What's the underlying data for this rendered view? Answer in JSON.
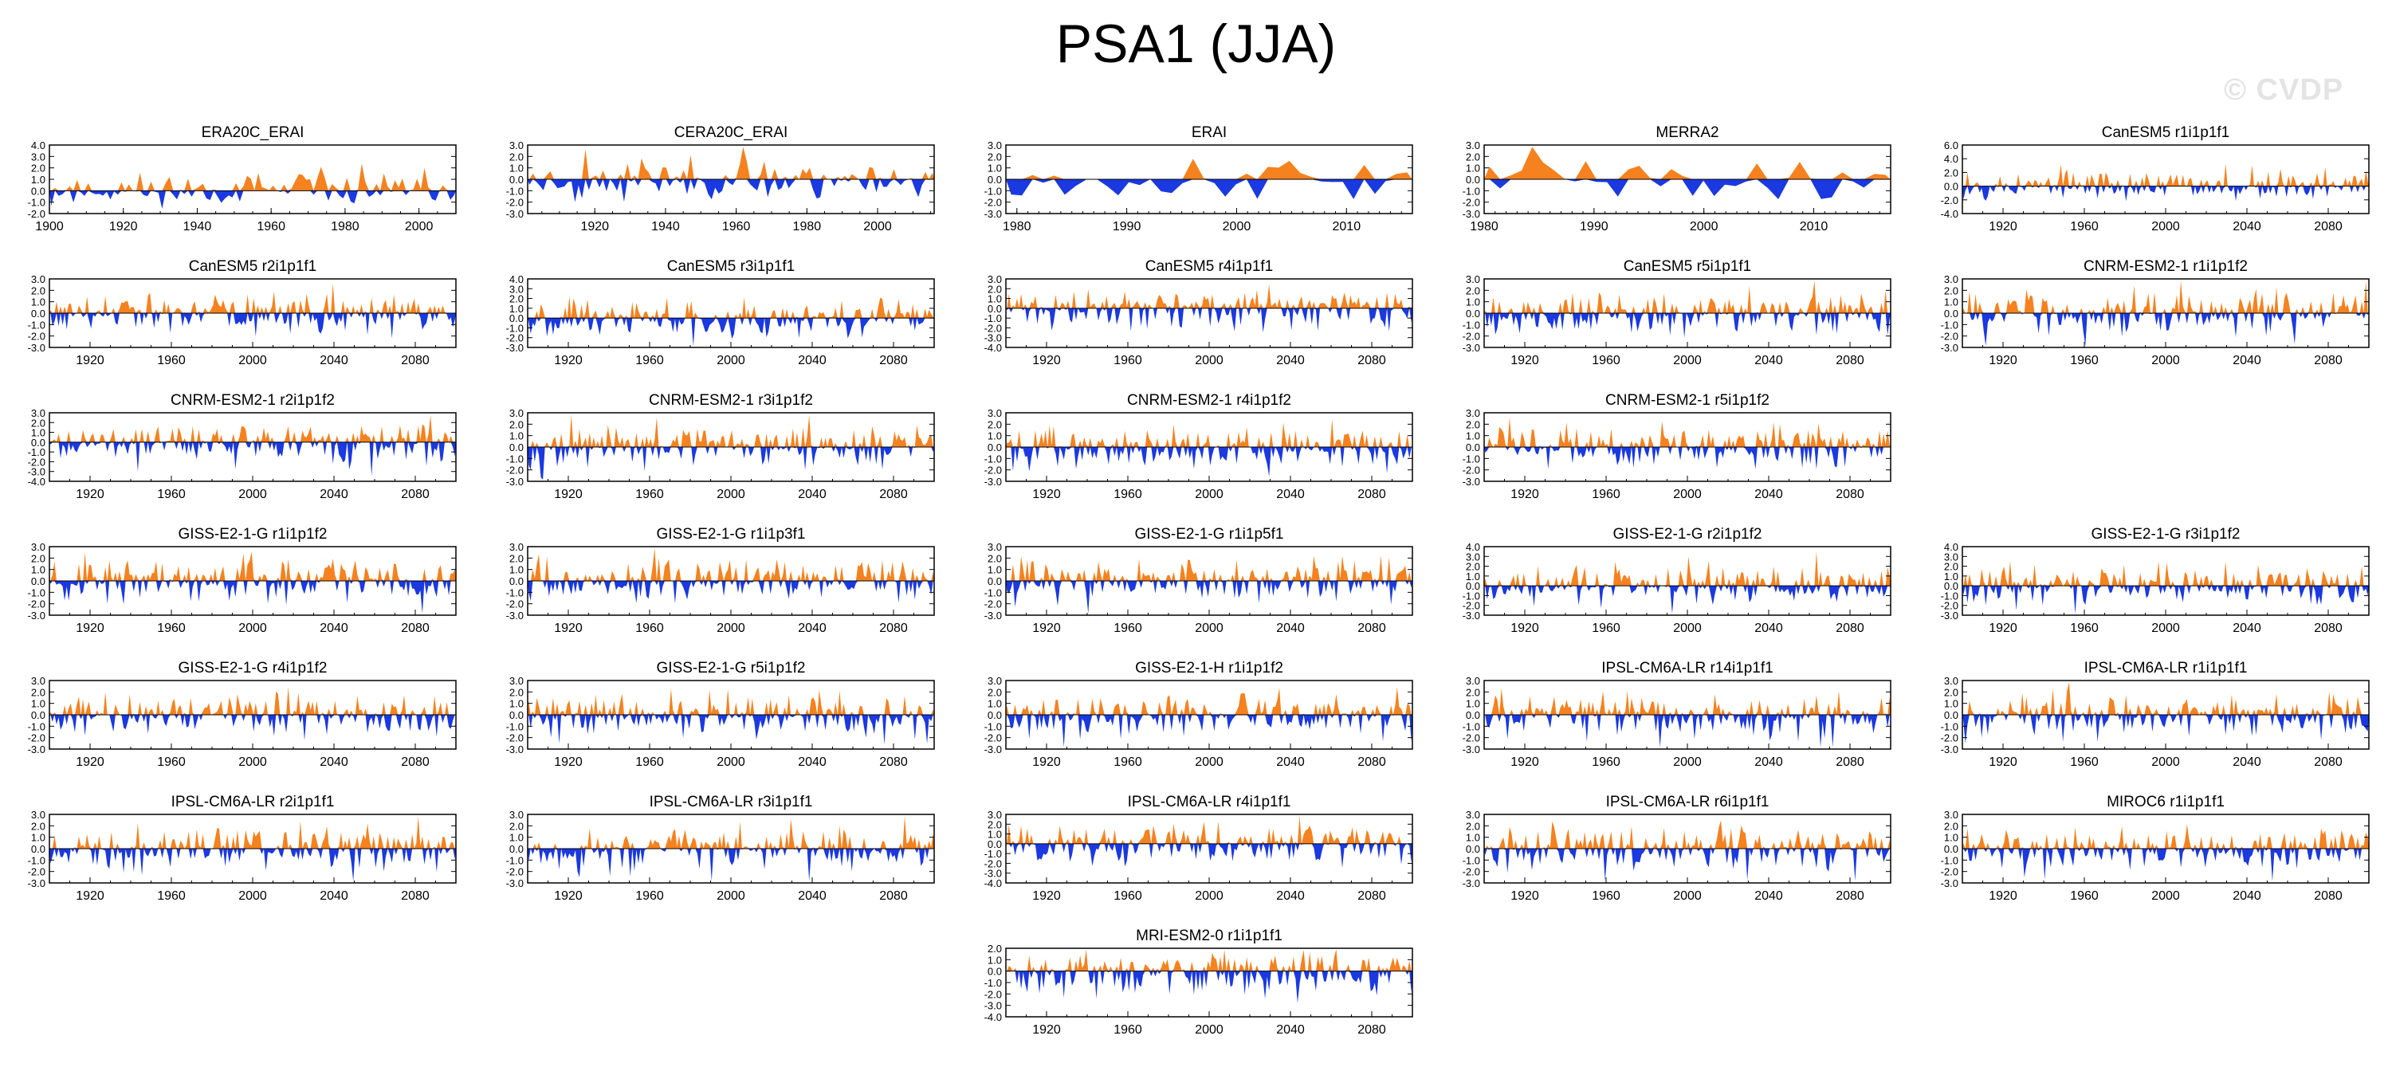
{
  "figure": {
    "title": "PSA1 (JJA)",
    "watermark": "© CVDP",
    "colors": {
      "positive": "#f5821f",
      "negative": "#1a39e0",
      "axis": "#000000"
    }
  },
  "chart_data": [
    {
      "type": "area",
      "title": "ERA20C_ERAI",
      "x_range": [
        1900,
        2010
      ],
      "xticks": [
        1900,
        1920,
        1940,
        1960,
        1980,
        2000
      ],
      "ylim": [
        -2.0,
        4.0
      ],
      "yticks": [
        -2.0,
        -1.0,
        0.0,
        1.0,
        2.0,
        3.0,
        4.0
      ],
      "points": 110,
      "amp": [
        1.4,
        1.0
      ],
      "seed": 11
    },
    {
      "type": "area",
      "title": "CERA20C_ERAI",
      "x_range": [
        1901,
        2016
      ],
      "xticks": [
        1920,
        1940,
        1960,
        1980,
        2000
      ],
      "ylim": [
        -3.0,
        3.0
      ],
      "yticks": [
        -3.0,
        -2.0,
        -1.0,
        0.0,
        1.0,
        2.0,
        3.0
      ],
      "points": 116,
      "amp": [
        1.5,
        1.3
      ],
      "seed": 23
    },
    {
      "type": "area",
      "title": "ERAI",
      "x_range": [
        1979,
        2016
      ],
      "xticks": [
        1980,
        1990,
        2000,
        2010
      ],
      "ylim": [
        -3.0,
        3.0
      ],
      "yticks": [
        -3.0,
        -2.0,
        -1.0,
        0.0,
        1.0,
        2.0,
        3.0
      ],
      "points": 38,
      "amp": [
        1.5,
        1.4
      ],
      "seed": 37
    },
    {
      "type": "area",
      "title": "MERRA2",
      "x_range": [
        1980,
        2017
      ],
      "xticks": [
        1980,
        1990,
        2000,
        2010
      ],
      "ylim": [
        -3.0,
        3.0
      ],
      "yticks": [
        -3.0,
        -2.0,
        -1.0,
        0.0,
        1.0,
        2.0,
        3.0
      ],
      "points": 38,
      "amp": [
        1.5,
        1.4
      ],
      "seed": 41
    },
    {
      "type": "area",
      "title": "CanESM5 r1i1p1f1",
      "x_range": [
        1900,
        2100
      ],
      "xticks": [
        1920,
        1960,
        2000,
        2040,
        2080
      ],
      "ylim": [
        -4.0,
        6.0
      ],
      "yticks": [
        -4.0,
        -2.0,
        0.0,
        2.0,
        4.0,
        6.0
      ],
      "points": 200,
      "amp": [
        2.2,
        1.6
      ],
      "seed": 53
    },
    {
      "type": "area",
      "title": "CanESM5 r2i1p1f1",
      "x_range": [
        1900,
        2100
      ],
      "xticks": [
        1920,
        1960,
        2000,
        2040,
        2080
      ],
      "ylim": [
        -3.0,
        3.0
      ],
      "yticks": [
        -3.0,
        -2.0,
        -1.0,
        0.0,
        1.0,
        2.0,
        3.0
      ],
      "points": 200,
      "amp": [
        1.5,
        1.6
      ],
      "seed": 61
    },
    {
      "type": "area",
      "title": "CanESM5 r3i1p1f1",
      "x_range": [
        1900,
        2100
      ],
      "xticks": [
        1920,
        1960,
        2000,
        2040,
        2080
      ],
      "ylim": [
        -3.0,
        4.0
      ],
      "yticks": [
        -3.0,
        -2.0,
        -1.0,
        0.0,
        1.0,
        2.0,
        3.0,
        4.0
      ],
      "points": 200,
      "amp": [
        1.8,
        1.5
      ],
      "seed": 67
    },
    {
      "type": "area",
      "title": "CanESM5 r4i1p1f1",
      "x_range": [
        1900,
        2100
      ],
      "xticks": [
        1920,
        1960,
        2000,
        2040,
        2080
      ],
      "ylim": [
        -4.0,
        3.0
      ],
      "yticks": [
        -4.0,
        -3.0,
        -2.0,
        -1.0,
        0.0,
        1.0,
        2.0,
        3.0
      ],
      "points": 200,
      "amp": [
        1.5,
        1.8
      ],
      "seed": 71
    },
    {
      "type": "area",
      "title": "CanESM5 r5i1p1f1",
      "x_range": [
        1900,
        2100
      ],
      "xticks": [
        1920,
        1960,
        2000,
        2040,
        2080
      ],
      "ylim": [
        -3.0,
        3.0
      ],
      "yticks": [
        -3.0,
        -2.0,
        -1.0,
        0.0,
        1.0,
        2.0,
        3.0
      ],
      "points": 200,
      "amp": [
        1.5,
        1.6
      ],
      "seed": 79
    },
    {
      "type": "area",
      "title": "CNRM-ESM2-1 r1i1p1f2",
      "x_range": [
        1900,
        2100
      ],
      "xticks": [
        1920,
        1960,
        2000,
        2040,
        2080
      ],
      "ylim": [
        -3.0,
        3.0
      ],
      "yticks": [
        -3.0,
        -2.0,
        -1.0,
        0.0,
        1.0,
        2.0,
        3.0
      ],
      "points": 200,
      "amp": [
        1.6,
        1.5
      ],
      "seed": 83
    },
    {
      "type": "area",
      "title": "CNRM-ESM2-1 r2i1p1f2",
      "x_range": [
        1900,
        2100
      ],
      "xticks": [
        1920,
        1960,
        2000,
        2040,
        2080
      ],
      "ylim": [
        -4.0,
        3.0
      ],
      "yticks": [
        -4.0,
        -3.0,
        -2.0,
        -1.0,
        0.0,
        1.0,
        2.0,
        3.0
      ],
      "points": 200,
      "amp": [
        1.6,
        1.8
      ],
      "seed": 89
    },
    {
      "type": "area",
      "title": "CNRM-ESM2-1 r3i1p1f2",
      "x_range": [
        1900,
        2100
      ],
      "xticks": [
        1920,
        1960,
        2000,
        2040,
        2080
      ],
      "ylim": [
        -3.0,
        3.0
      ],
      "yticks": [
        -3.0,
        -2.0,
        -1.0,
        0.0,
        1.0,
        2.0,
        3.0
      ],
      "points": 200,
      "amp": [
        1.6,
        1.5
      ],
      "seed": 97
    },
    {
      "type": "area",
      "title": "CNRM-ESM2-1 r4i1p1f2",
      "x_range": [
        1900,
        2100
      ],
      "xticks": [
        1920,
        1960,
        2000,
        2040,
        2080
      ],
      "ylim": [
        -3.0,
        3.0
      ],
      "yticks": [
        -3.0,
        -2.0,
        -1.0,
        0.0,
        1.0,
        2.0,
        3.0
      ],
      "points": 200,
      "amp": [
        1.6,
        1.6
      ],
      "seed": 101
    },
    {
      "type": "area",
      "title": "CNRM-ESM2-1 r5i1p1f2",
      "x_range": [
        1900,
        2100
      ],
      "xticks": [
        1920,
        1960,
        2000,
        2040,
        2080
      ],
      "ylim": [
        -3.0,
        3.0
      ],
      "yticks": [
        -3.0,
        -2.0,
        -1.0,
        0.0,
        1.0,
        2.0,
        3.0
      ],
      "points": 200,
      "amp": [
        1.6,
        1.6
      ],
      "seed": 103
    },
    {
      "type": "area",
      "title": "GISS-E2-1-G r1i1p1f2",
      "x_range": [
        1900,
        2100
      ],
      "xticks": [
        1920,
        1960,
        2000,
        2040,
        2080
      ],
      "ylim": [
        -3.0,
        3.0
      ],
      "yticks": [
        -3.0,
        -2.0,
        -1.0,
        0.0,
        1.0,
        2.0,
        3.0
      ],
      "points": 200,
      "amp": [
        1.6,
        1.5
      ],
      "seed": 107
    },
    {
      "type": "area",
      "title": "GISS-E2-1-G r1i1p3f1",
      "x_range": [
        1900,
        2100
      ],
      "xticks": [
        1920,
        1960,
        2000,
        2040,
        2080
      ],
      "ylim": [
        -3.0,
        3.0
      ],
      "yticks": [
        -3.0,
        -2.0,
        -1.0,
        0.0,
        1.0,
        2.0,
        3.0
      ],
      "points": 200,
      "amp": [
        1.6,
        1.5
      ],
      "seed": 109
    },
    {
      "type": "area",
      "title": "GISS-E2-1-G r1i1p5f1",
      "x_range": [
        1900,
        2100
      ],
      "xticks": [
        1920,
        1960,
        2000,
        2040,
        2080
      ],
      "ylim": [
        -3.0,
        3.0
      ],
      "yticks": [
        -3.0,
        -2.0,
        -1.0,
        0.0,
        1.0,
        2.0,
        3.0
      ],
      "points": 200,
      "amp": [
        1.7,
        1.5
      ],
      "seed": 113
    },
    {
      "type": "area",
      "title": "GISS-E2-1-G r2i1p1f2",
      "x_range": [
        1900,
        2100
      ],
      "xticks": [
        1920,
        1960,
        2000,
        2040,
        2080
      ],
      "ylim": [
        -3.0,
        4.0
      ],
      "yticks": [
        -3.0,
        -2.0,
        -1.0,
        0.0,
        1.0,
        2.0,
        3.0,
        4.0
      ],
      "points": 200,
      "amp": [
        1.8,
        1.5
      ],
      "seed": 127
    },
    {
      "type": "area",
      "title": "GISS-E2-1-G r3i1p1f2",
      "x_range": [
        1900,
        2100
      ],
      "xticks": [
        1920,
        1960,
        2000,
        2040,
        2080
      ],
      "ylim": [
        -3.0,
        4.0
      ],
      "yticks": [
        -3.0,
        -2.0,
        -1.0,
        0.0,
        1.0,
        2.0,
        3.0,
        4.0
      ],
      "points": 200,
      "amp": [
        1.8,
        1.5
      ],
      "seed": 131
    },
    {
      "type": "area",
      "title": "GISS-E2-1-G r4i1p1f2",
      "x_range": [
        1900,
        2100
      ],
      "xticks": [
        1920,
        1960,
        2000,
        2040,
        2080
      ],
      "ylim": [
        -3.0,
        3.0
      ],
      "yticks": [
        -3.0,
        -2.0,
        -1.0,
        0.0,
        1.0,
        2.0,
        3.0
      ],
      "points": 200,
      "amp": [
        1.6,
        1.5
      ],
      "seed": 137
    },
    {
      "type": "area",
      "title": "GISS-E2-1-G r5i1p1f2",
      "x_range": [
        1900,
        2100
      ],
      "xticks": [
        1920,
        1960,
        2000,
        2040,
        2080
      ],
      "ylim": [
        -3.0,
        3.0
      ],
      "yticks": [
        -3.0,
        -2.0,
        -1.0,
        0.0,
        1.0,
        2.0,
        3.0
      ],
      "points": 200,
      "amp": [
        1.6,
        1.5
      ],
      "seed": 139
    },
    {
      "type": "area",
      "title": "GISS-E2-1-H r1i1p1f2",
      "x_range": [
        1900,
        2100
      ],
      "xticks": [
        1920,
        1960,
        2000,
        2040,
        2080
      ],
      "ylim": [
        -3.0,
        3.0
      ],
      "yticks": [
        -3.0,
        -2.0,
        -1.0,
        0.0,
        1.0,
        2.0,
        3.0
      ],
      "points": 200,
      "amp": [
        1.6,
        1.6
      ],
      "seed": 149
    },
    {
      "type": "area",
      "title": "IPSL-CM6A-LR r14i1p1f1",
      "x_range": [
        1900,
        2100
      ],
      "xticks": [
        1920,
        1960,
        2000,
        2040,
        2080
      ],
      "ylim": [
        -3.0,
        3.0
      ],
      "yticks": [
        -3.0,
        -2.0,
        -1.0,
        0.0,
        1.0,
        2.0,
        3.0
      ],
      "points": 200,
      "amp": [
        1.6,
        1.6
      ],
      "seed": 151
    },
    {
      "type": "area",
      "title": "IPSL-CM6A-LR r1i1p1f1",
      "x_range": [
        1900,
        2100
      ],
      "xticks": [
        1920,
        1960,
        2000,
        2040,
        2080
      ],
      "ylim": [
        -3.0,
        3.0
      ],
      "yticks": [
        -3.0,
        -2.0,
        -1.0,
        0.0,
        1.0,
        2.0,
        3.0
      ],
      "points": 200,
      "amp": [
        1.6,
        1.5
      ],
      "seed": 157
    },
    {
      "type": "area",
      "title": "IPSL-CM6A-LR r2i1p1f1",
      "x_range": [
        1900,
        2100
      ],
      "xticks": [
        1920,
        1960,
        2000,
        2040,
        2080
      ],
      "ylim": [
        -3.0,
        3.0
      ],
      "yticks": [
        -3.0,
        -2.0,
        -1.0,
        0.0,
        1.0,
        2.0,
        3.0
      ],
      "points": 200,
      "amp": [
        1.6,
        1.6
      ],
      "seed": 163
    },
    {
      "type": "area",
      "title": "IPSL-CM6A-LR r3i1p1f1",
      "x_range": [
        1900,
        2100
      ],
      "xticks": [
        1920,
        1960,
        2000,
        2040,
        2080
      ],
      "ylim": [
        -3.0,
        3.0
      ],
      "yticks": [
        -3.0,
        -2.0,
        -1.0,
        0.0,
        1.0,
        2.0,
        3.0
      ],
      "points": 200,
      "amp": [
        1.6,
        1.5
      ],
      "seed": 167
    },
    {
      "type": "area",
      "title": "IPSL-CM6A-LR r4i1p1f1",
      "x_range": [
        1900,
        2100
      ],
      "xticks": [
        1920,
        1960,
        2000,
        2040,
        2080
      ],
      "ylim": [
        -4.0,
        3.0
      ],
      "yticks": [
        -4.0,
        -3.0,
        -2.0,
        -1.0,
        0.0,
        1.0,
        2.0,
        3.0
      ],
      "points": 200,
      "amp": [
        1.6,
        1.8
      ],
      "seed": 173
    },
    {
      "type": "area",
      "title": "IPSL-CM6A-LR r6i1p1f1",
      "x_range": [
        1900,
        2100
      ],
      "xticks": [
        1920,
        1960,
        2000,
        2040,
        2080
      ],
      "ylim": [
        -3.0,
        3.0
      ],
      "yticks": [
        -3.0,
        -2.0,
        -1.0,
        0.0,
        1.0,
        2.0,
        3.0
      ],
      "points": 200,
      "amp": [
        1.6,
        1.6
      ],
      "seed": 179
    },
    {
      "type": "area",
      "title": "MIROC6 r1i1p1f1",
      "x_range": [
        1900,
        2100
      ],
      "xticks": [
        1920,
        1960,
        2000,
        2040,
        2080
      ],
      "ylim": [
        -3.0,
        3.0
      ],
      "yticks": [
        -3.0,
        -2.0,
        -1.0,
        0.0,
        1.0,
        2.0,
        3.0
      ],
      "points": 200,
      "amp": [
        1.6,
        1.6
      ],
      "seed": 181
    },
    {
      "type": "area",
      "title": "MRI-ESM2-0 r1i1p1f1",
      "x_range": [
        1900,
        2100
      ],
      "xticks": [
        1920,
        1960,
        2000,
        2040,
        2080
      ],
      "ylim": [
        -4.0,
        2.0
      ],
      "yticks": [
        -4.0,
        -3.0,
        -2.0,
        -1.0,
        0.0,
        1.0,
        2.0
      ],
      "points": 200,
      "amp": [
        1.4,
        1.8
      ],
      "seed": 191
    }
  ]
}
